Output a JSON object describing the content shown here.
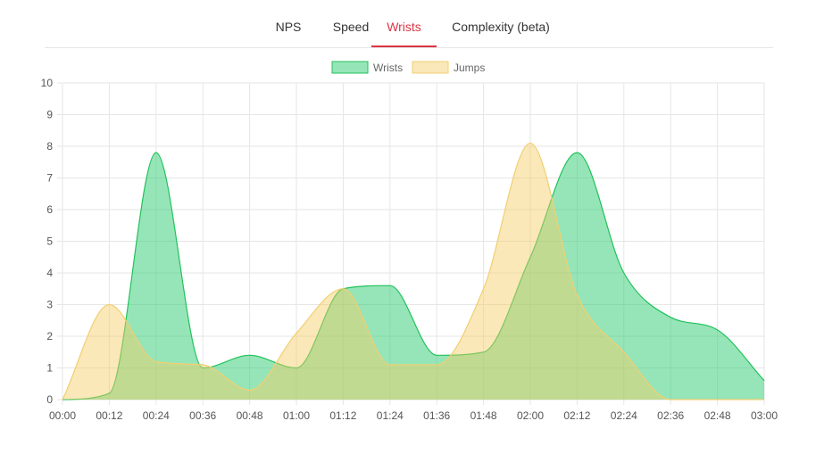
{
  "tabs": [
    {
      "label": "NPS",
      "active": false
    },
    {
      "label": "Speed",
      "active": false
    },
    {
      "label": "Wrists",
      "active": true
    },
    {
      "label": "Complexity (beta)",
      "active": false
    }
  ],
  "colors": {
    "accent": "#dc3545",
    "wrists_fill": "rgba(46, 204, 113, 0.5)",
    "wrists_stroke": "#21c25a",
    "jumps_fill": "rgba(245, 204, 100, 0.45)",
    "jumps_stroke": "#f2cf70",
    "grid": "#e6e6e6"
  },
  "chart_data": {
    "type": "area",
    "x": [
      "00:00",
      "00:12",
      "00:24",
      "00:36",
      "00:48",
      "01:00",
      "01:12",
      "01:24",
      "01:36",
      "01:48",
      "02:00",
      "02:12",
      "02:24",
      "02:36",
      "02:48",
      "03:00"
    ],
    "series": [
      {
        "name": "Wrists",
        "values": [
          0,
          0.2,
          7.8,
          1.0,
          1.4,
          1.0,
          3.5,
          3.6,
          1.4,
          1.5,
          4.5,
          7.8,
          4.0,
          2.6,
          2.2,
          0.6
        ]
      },
      {
        "name": "Jumps",
        "values": [
          0,
          3.0,
          1.2,
          1.1,
          0.3,
          2.1,
          3.5,
          1.1,
          1.1,
          3.5,
          8.1,
          3.3,
          1.5,
          0,
          0,
          0
        ]
      }
    ],
    "yticks": [
      "0",
      "1",
      "2",
      "3",
      "4",
      "5",
      "6",
      "7",
      "8",
      "9",
      "10"
    ],
    "ylim": [
      0,
      10
    ],
    "grid": true,
    "legend_position": "top-center"
  }
}
